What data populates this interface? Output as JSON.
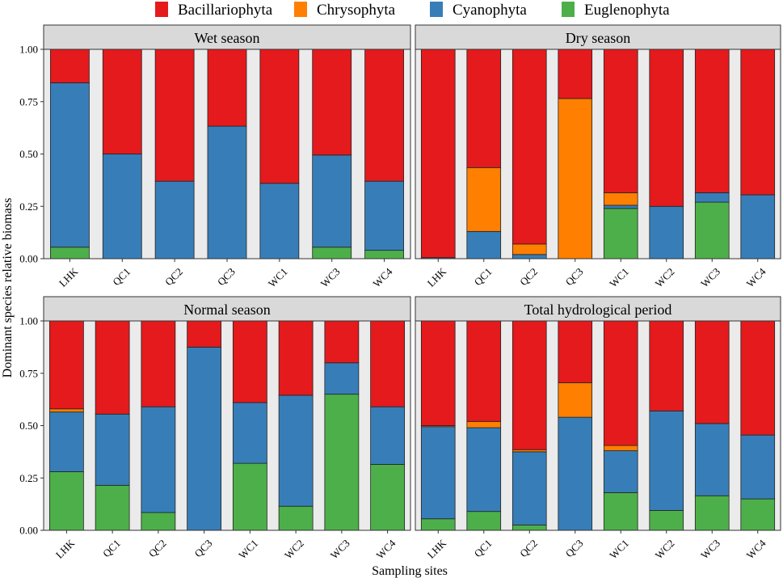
{
  "chart_data": {
    "type": "bar",
    "stacked": true,
    "xlabel": "Sampling sites",
    "ylabel": "Dominant species relative biomass",
    "ylim": [
      0,
      1
    ],
    "yticks": [
      "0.00",
      "0.25",
      "0.50",
      "0.75",
      "1.00"
    ],
    "legend": {
      "position": "top",
      "entries": [
        {
          "name": "Bacillariophyta",
          "color": "#e41a1c"
        },
        {
          "name": "Chrysophyta",
          "color": "#ff7f00"
        },
        {
          "name": "Cyanophyta",
          "color": "#377eb8"
        },
        {
          "name": "Euglenophyta",
          "color": "#4daf4a"
        }
      ]
    },
    "stack_order": [
      "Euglenophyta",
      "Cyanophyta",
      "Chrysophyta",
      "Bacillariophyta"
    ],
    "panels": [
      {
        "title": "Wet season",
        "categories": [
          "LHK",
          "QC1",
          "QC2",
          "QC3",
          "WC1",
          "WC3",
          "WC4"
        ],
        "series": [
          {
            "name": "Euglenophyta",
            "values": [
              0.055,
              0,
              0,
              0,
              0,
              0.055,
              0.04
            ]
          },
          {
            "name": "Cyanophyta",
            "values": [
              0.785,
              0.5,
              0.37,
              0.633,
              0.36,
              0.44,
              0.33
            ]
          },
          {
            "name": "Chrysophyta",
            "values": [
              0,
              0,
              0,
              0,
              0,
              0,
              0
            ]
          },
          {
            "name": "Bacillariophyta",
            "values": [
              0.16,
              0.5,
              0.63,
              0.367,
              0.64,
              0.505,
              0.63
            ]
          }
        ]
      },
      {
        "title": "Dry season",
        "categories": [
          "LHK",
          "QC1",
          "QC2",
          "QC3",
          "WC1",
          "WC2",
          "WC3",
          "WC4"
        ],
        "series": [
          {
            "name": "Euglenophyta",
            "values": [
              0,
              0,
              0,
              0,
              0.24,
              0,
              0.27,
              0
            ]
          },
          {
            "name": "Cyanophyta",
            "values": [
              0.005,
              0.13,
              0.02,
              0,
              0.015,
              0.25,
              0.045,
              0.305
            ]
          },
          {
            "name": "Chrysophyta",
            "values": [
              0,
              0.305,
              0.05,
              0.765,
              0.06,
              0,
              0,
              0
            ]
          },
          {
            "name": "Bacillariophyta",
            "values": [
              0.995,
              0.565,
              0.93,
              0.235,
              0.685,
              0.75,
              0.685,
              0.695
            ]
          }
        ]
      },
      {
        "title": "Normal season",
        "categories": [
          "LHK",
          "QC1",
          "QC2",
          "QC3",
          "WC1",
          "WC2",
          "WC3",
          "WC4"
        ],
        "series": [
          {
            "name": "Euglenophyta",
            "values": [
              0.28,
              0.215,
              0.085,
              0,
              0.32,
              0.115,
              0.65,
              0.315
            ]
          },
          {
            "name": "Cyanophyta",
            "values": [
              0.285,
              0.34,
              0.505,
              0.875,
              0.29,
              0.53,
              0.15,
              0.275
            ]
          },
          {
            "name": "Chrysophyta",
            "values": [
              0.015,
              0,
              0,
              0,
              0,
              0,
              0,
              0
            ]
          },
          {
            "name": "Bacillariophyta",
            "values": [
              0.42,
              0.445,
              0.41,
              0.125,
              0.39,
              0.355,
              0.2,
              0.41
            ]
          }
        ]
      },
      {
        "title": "Total hydrological period",
        "categories": [
          "LHK",
          "QC1",
          "QC2",
          "QC3",
          "WC1",
          "WC2",
          "WC3",
          "WC4"
        ],
        "series": [
          {
            "name": "Euglenophyta",
            "values": [
              0.055,
              0.09,
              0.025,
              0,
              0.18,
              0.095,
              0.165,
              0.15
            ]
          },
          {
            "name": "Cyanophyta",
            "values": [
              0.44,
              0.4,
              0.35,
              0.54,
              0.2,
              0.475,
              0.345,
              0.305
            ]
          },
          {
            "name": "Chrysophyta",
            "values": [
              0.005,
              0.03,
              0.01,
              0.165,
              0.025,
              0,
              0,
              0
            ]
          },
          {
            "name": "Bacillariophyta",
            "values": [
              0.5,
              0.48,
              0.615,
              0.295,
              0.595,
              0.43,
              0.49,
              0.545
            ]
          }
        ]
      }
    ]
  }
}
